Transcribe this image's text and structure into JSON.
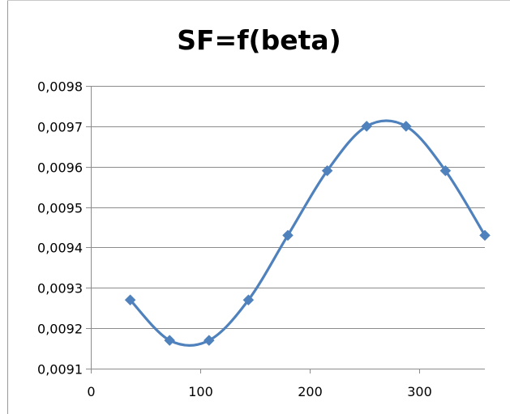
{
  "chart_data": {
    "type": "scatter",
    "title": "SF=f(beta)",
    "xlabel": "",
    "ylabel": "",
    "xlim": [
      0,
      360
    ],
    "ylim": [
      0.0091,
      0.0098
    ],
    "x_ticks": [
      0,
      100,
      200,
      300
    ],
    "x_tick_labels": [
      "0",
      "100",
      "200",
      "300"
    ],
    "y_ticks": [
      0.0091,
      0.0092,
      0.0093,
      0.0094,
      0.0095,
      0.0096,
      0.0097,
      0.0098
    ],
    "y_tick_labels": [
      "0,0091",
      "0,0092",
      "0,0093",
      "0,0094",
      "0,0095",
      "0,0096",
      "0,0097",
      "0,0098"
    ],
    "grid": "horizontal",
    "legend": "none",
    "series": [
      {
        "color": "#4f81bd",
        "marker": "diamond",
        "smooth": true,
        "x": [
          36,
          72,
          108,
          144,
          180,
          216,
          252,
          288,
          324,
          360
        ],
        "y": [
          0.00927,
          0.00917,
          0.00917,
          0.00927,
          0.00943,
          0.00959,
          0.0097,
          0.0097,
          0.00959,
          0.00943
        ]
      }
    ]
  }
}
